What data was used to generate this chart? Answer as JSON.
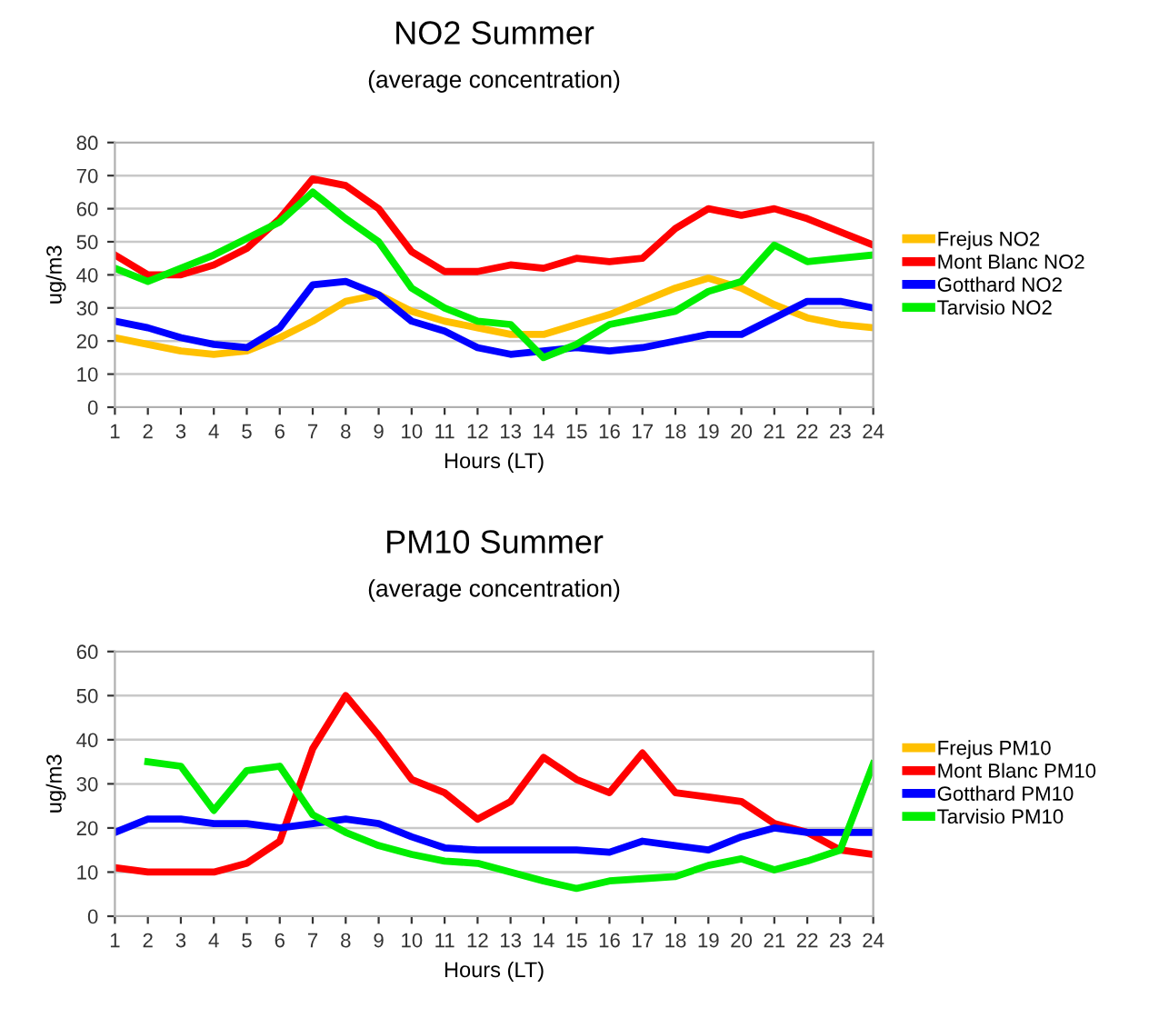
{
  "chart_data": [
    {
      "type": "line",
      "title": "NO2 Summer",
      "subtitle": "(average concentration)",
      "xlabel": "Hours (LT)",
      "ylabel": "ug/m3",
      "x": [
        1,
        2,
        3,
        4,
        5,
        6,
        7,
        8,
        9,
        10,
        11,
        12,
        13,
        14,
        15,
        16,
        17,
        18,
        19,
        20,
        21,
        22,
        23,
        24
      ],
      "xlim": [
        1,
        24
      ],
      "xticks": [
        1,
        2,
        3,
        4,
        5,
        6,
        7,
        8,
        9,
        10,
        11,
        12,
        13,
        14,
        15,
        16,
        17,
        18,
        19,
        20,
        21,
        22,
        23,
        24
      ],
      "ylim": [
        0,
        80
      ],
      "yticks": [
        0,
        10,
        20,
        30,
        40,
        50,
        60,
        70,
        80
      ],
      "grid": "y",
      "legend": "right",
      "marker": "none",
      "line_style": "solid",
      "series": [
        {
          "name": "Frejus NO2",
          "color": "#ffc000",
          "values": [
            21,
            19,
            17,
            16,
            17,
            21,
            26,
            32,
            34,
            29,
            26,
            24,
            22,
            22,
            25,
            28,
            32,
            36,
            39,
            36,
            31,
            27,
            25,
            24
          ]
        },
        {
          "name": "Mont Blanc NO2",
          "color": "#ff0000",
          "values": [
            46,
            40,
            40,
            43,
            48,
            57,
            69,
            67,
            60,
            47,
            41,
            41,
            43,
            42,
            45,
            44,
            45,
            54,
            60,
            58,
            60,
            57,
            53,
            49
          ]
        },
        {
          "name": "Gotthard NO2",
          "color": "#0000ff",
          "values": [
            26,
            24,
            21,
            19,
            18,
            24,
            37,
            38,
            34,
            26,
            23,
            18,
            16,
            17,
            18,
            17,
            18,
            20,
            22,
            22,
            27,
            32,
            32,
            30
          ]
        },
        {
          "name": "Tarvisio NO2",
          "color": "#00ee00",
          "values": [
            42,
            38,
            42,
            46,
            51,
            56,
            65,
            57,
            50,
            36,
            30,
            26,
            25,
            15,
            19,
            25,
            27,
            29,
            35,
            38,
            49,
            44,
            45,
            46
          ]
        }
      ]
    },
    {
      "type": "line",
      "title": "PM10 Summer",
      "subtitle": "(average concentration)",
      "xlabel": "Hours (LT)",
      "ylabel": "ug/m3",
      "x": [
        1,
        2,
        3,
        4,
        5,
        6,
        7,
        8,
        9,
        10,
        11,
        12,
        13,
        14,
        15,
        16,
        17,
        18,
        19,
        20,
        21,
        22,
        23,
        24
      ],
      "xlim": [
        1,
        24
      ],
      "xticks": [
        1,
        2,
        3,
        4,
        5,
        6,
        7,
        8,
        9,
        10,
        11,
        12,
        13,
        14,
        15,
        16,
        17,
        18,
        19,
        20,
        21,
        22,
        23,
        24
      ],
      "ylim": [
        0,
        60
      ],
      "yticks": [
        0,
        10,
        20,
        30,
        40,
        50,
        60
      ],
      "grid": "y",
      "legend": "right",
      "marker": "none",
      "line_style": "solid",
      "series": [
        {
          "name": "Frejus PM10",
          "color": "#ffc000",
          "values": [
            null,
            null,
            null,
            null,
            null,
            null,
            null,
            null,
            null,
            null,
            null,
            null,
            null,
            null,
            null,
            null,
            null,
            null,
            null,
            null,
            null,
            null,
            null,
            null
          ]
        },
        {
          "name": "Mont Blanc PM10",
          "color": "#ff0000",
          "values": [
            11,
            10,
            10,
            10,
            12,
            17,
            38,
            50,
            41,
            31,
            28,
            22,
            26,
            36,
            31,
            28,
            37,
            28,
            27,
            26,
            21,
            19,
            15,
            14
          ]
        },
        {
          "name": "Gotthard PM10",
          "color": "#0000ff",
          "values": [
            19,
            22,
            22,
            21,
            21,
            20,
            21,
            22,
            21,
            18,
            15.5,
            15,
            15,
            15,
            15,
            14.5,
            17,
            16,
            15,
            18,
            20,
            19,
            19,
            19
          ]
        },
        {
          "name": "Tarvisio PM10",
          "color": "#00ee00",
          "values": [
            null,
            35,
            34,
            24,
            33,
            34,
            23,
            19,
            16,
            14,
            12.5,
            12,
            10,
            8,
            6.3,
            8,
            8.5,
            9,
            11.5,
            13,
            10.5,
            12.5,
            15,
            34.5
          ]
        }
      ]
    }
  ]
}
